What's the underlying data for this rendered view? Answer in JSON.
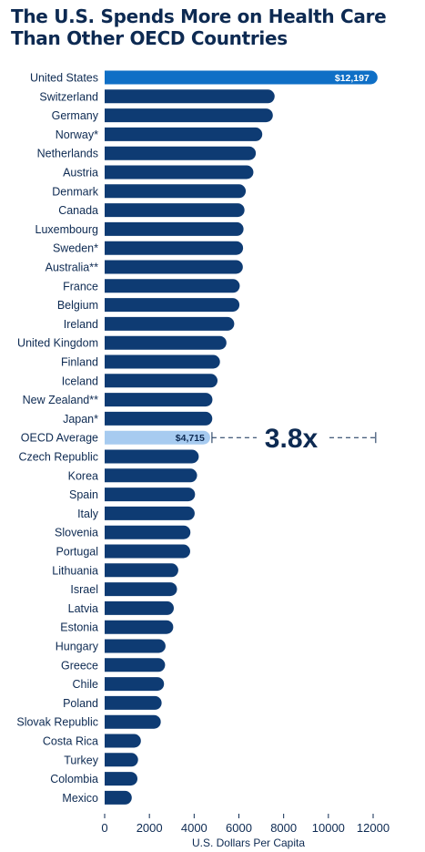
{
  "chart_data": {
    "type": "bar",
    "orientation": "horizontal",
    "title": "The U.S. Spends More on Health Care Than Other OECD Countries",
    "xlabel": "U.S. Dollars Per Capita",
    "ylabel": "",
    "xlim": [
      0,
      12000
    ],
    "xticks": [
      "0",
      "2000",
      "4000",
      "6000",
      "8000",
      "10000",
      "12000"
    ],
    "grid": false,
    "legend": "none",
    "categories": [
      "United States",
      "Switzerland",
      "Germany",
      "Norway*",
      "Netherlands",
      "Austria",
      "Denmark",
      "Canada",
      "Luxembourg",
      "Sweden*",
      "Australia**",
      "France",
      "Belgium",
      "Ireland",
      "United Kingdom",
      "Finland",
      "Iceland",
      "New Zealand**",
      "Japan*",
      "OECD Average",
      "Czech Republic",
      "Korea",
      "Spain",
      "Italy",
      "Slovenia",
      "Portugal",
      "Lithuania",
      "Israel",
      "Latvia",
      "Estonia",
      "Hungary",
      "Greece",
      "Chile",
      "Poland",
      "Slovak Republic",
      "Costa Rica",
      "Turkey",
      "Colombia",
      "Mexico"
    ],
    "values": [
      12197,
      7597,
      7517,
      7045,
      6757,
      6649,
      6308,
      6251,
      6208,
      6187,
      6177,
      6038,
      6024,
      5792,
      5444,
      5155,
      5045,
      4818,
      4811,
      4715,
      4206,
      4131,
      4040,
      4024,
      3834,
      3823,
      3291,
      3234,
      3091,
      3066,
      2722,
      2701,
      2653,
      2547,
      2509,
      1620,
      1494,
      1466,
      1212
    ],
    "data_labels": {
      "United States": "$12,197",
      "OECD Average": "$4,715"
    },
    "annotation": "3.8x",
    "colors": {
      "bar": "#0e3b73",
      "highlight": "#0f6fc6",
      "average": "#a7cbf0",
      "text": "#0d2a52",
      "us_label": "#ffffff",
      "avg_label": "#0d2a52"
    }
  }
}
